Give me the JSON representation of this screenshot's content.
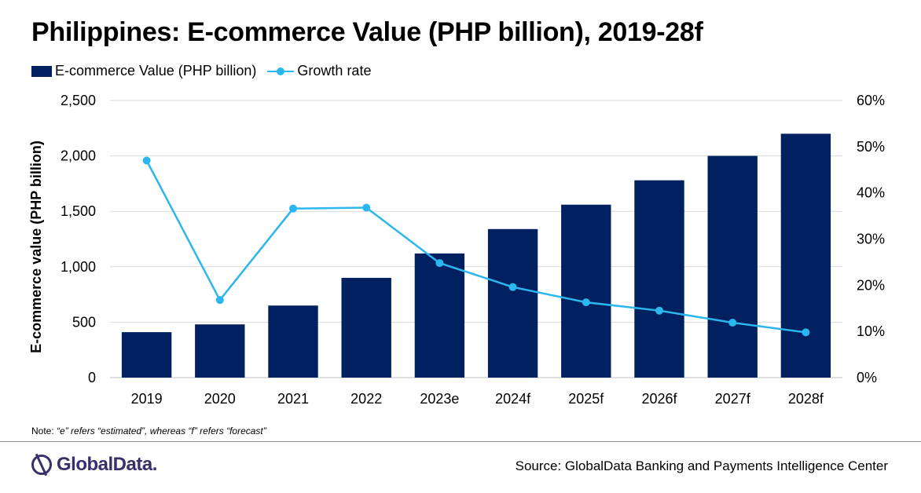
{
  "title": "Philippines: E-commerce Value (PHP billion), 2019-28f",
  "legend": {
    "bar_label": "E-commerce Value (PHP billion)",
    "line_label": "Growth rate"
  },
  "note": {
    "prefix": "Note:",
    "text": "“e” refers “estimated”, whereas “f” refers “forecast”"
  },
  "brand": "GlobalData.",
  "source": "Source: GlobalData Banking and Payments Intelligence Center",
  "colors": {
    "bar": "#002060",
    "line": "#2cb6ee",
    "grid": "#d9d9d9"
  },
  "chart_data": {
    "type": "bar",
    "categories": [
      "2019",
      "2020",
      "2021",
      "2022",
      "2023e",
      "2024f",
      "2025f",
      "2026f",
      "2027f",
      "2028f"
    ],
    "series": [
      {
        "name": "E-commerce Value (PHP billion)",
        "type": "bar",
        "axis": "left",
        "values": [
          410,
          480,
          650,
          900,
          1120,
          1340,
          1560,
          1780,
          2000,
          2200
        ]
      },
      {
        "name": "Growth rate",
        "type": "line",
        "axis": "right",
        "values": [
          47.0,
          16.8,
          36.6,
          36.8,
          24.8,
          19.6,
          16.3,
          14.5,
          11.9,
          9.8
        ]
      }
    ],
    "ylabel": "E-commerce value (PHP billion)",
    "ylim": [
      0,
      2500
    ],
    "yticks": [
      "0",
      "500",
      "1,000",
      "1,500",
      "2,000",
      "2,500"
    ],
    "ylim_right": [
      0,
      60
    ],
    "yticks_right": [
      "0%",
      "10%",
      "20%",
      "30%",
      "40%",
      "50%",
      "60%"
    ],
    "grid": true,
    "legend_position": "top-left"
  }
}
